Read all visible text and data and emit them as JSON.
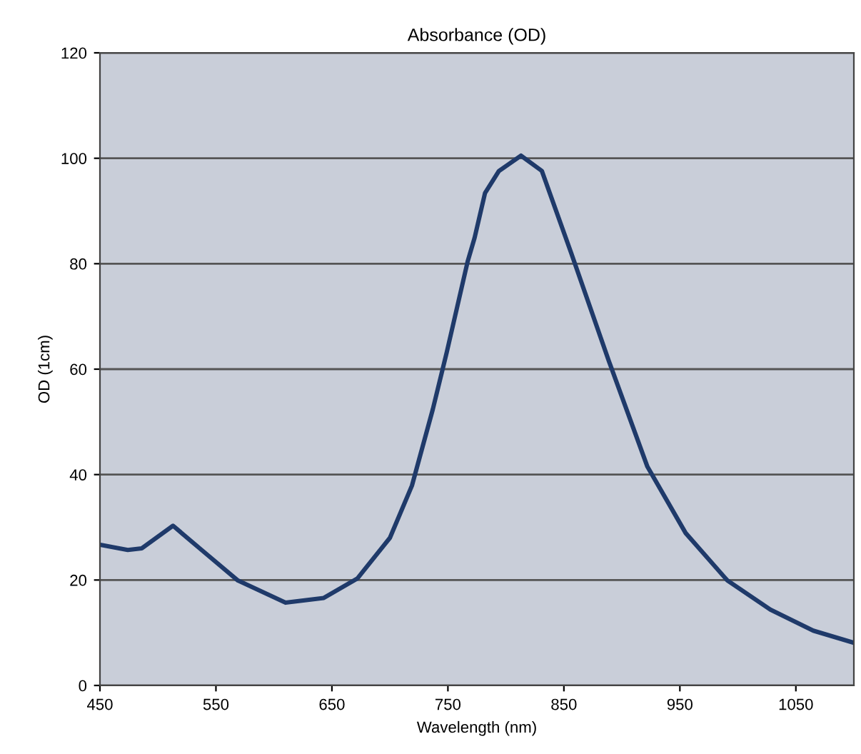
{
  "chart_data": {
    "type": "line",
    "title": "Absorbance (OD)",
    "xlabel": "Wavelength (nm)",
    "ylabel": "OD (1cm)",
    "x": [
      452,
      474,
      486,
      513,
      536,
      569,
      610,
      643,
      672,
      700,
      719,
      737,
      749,
      767,
      773,
      782,
      794,
      813,
      831,
      856,
      889,
      922,
      955,
      991,
      1028,
      1065,
      1100
    ],
    "series": [
      {
        "color": "#1f3a6a",
        "values": [
          26.6,
          25.7,
          26.0,
          30.3,
          26.0,
          19.9,
          15.7,
          16.6,
          20.3,
          28.0,
          37.9,
          52.4,
          63.2,
          80.4,
          84.9,
          93.4,
          97.6,
          100.5,
          97.6,
          82.2,
          61.4,
          41.5,
          28.9,
          19.9,
          14.4,
          10.4,
          8.1
        ]
      }
    ],
    "xlim": [
      450,
      1100
    ],
    "xticks": [
      450,
      550,
      650,
      750,
      850,
      950,
      1050
    ],
    "ylim": [
      0,
      120
    ],
    "yticks": [
      0,
      20,
      40,
      60,
      80,
      100,
      120
    ],
    "grid": "y",
    "marker": "none",
    "line_style": "solid",
    "legend": false
  }
}
